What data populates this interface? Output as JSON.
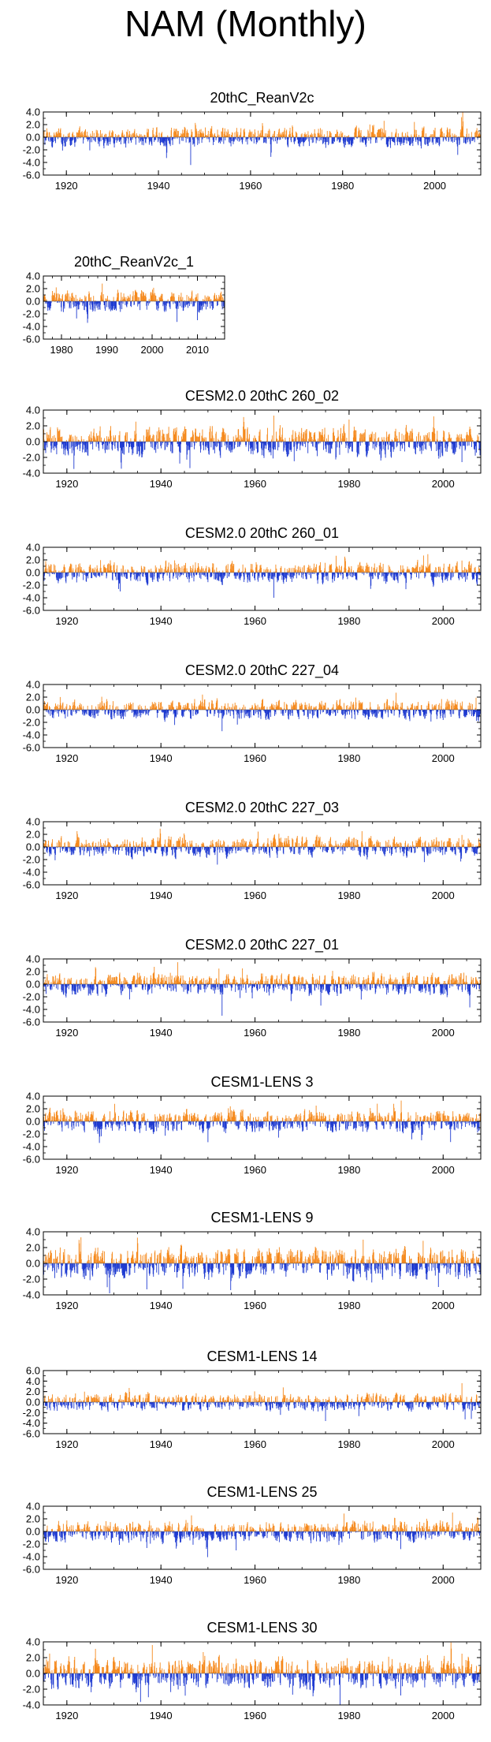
{
  "page_title": "NAM (Monthly)",
  "colors": {
    "positive": "#f5891c",
    "negative": "#1f3bd1",
    "axis": "#000000"
  },
  "chart_data": [
    {
      "type": "bar",
      "title": "20thC_ReanV2c",
      "xlim": [
        1915,
        2010
      ],
      "ylim": [
        -6,
        4
      ],
      "xticks": [
        1920,
        1940,
        1960,
        1980,
        2000
      ],
      "yticks": [
        4,
        2,
        0,
        -2,
        -4,
        -6
      ],
      "ytick_labels": [
        "4.0",
        "2.0",
        "0.0",
        "-2.0",
        "-4.0",
        "-6.0"
      ],
      "x_range": [
        1915,
        2010
      ],
      "amplitude": [
        1.2,
        2.0
      ],
      "peaks": [
        [
          1947,
          -4.4
        ],
        [
          1989,
          2.6
        ],
        [
          2005,
          -2.8
        ]
      ]
    },
    {
      "type": "bar",
      "title": "20thC_ReanV2c_1",
      "xlim": [
        1976,
        2016
      ],
      "ylim": [
        -6,
        4
      ],
      "xticks": [
        1980,
        1990,
        2000,
        2010
      ],
      "yticks": [
        4,
        2,
        0,
        -2,
        -4,
        -6
      ],
      "ytick_labels": [
        "4.0",
        "2.0",
        "0.0",
        "-2.0",
        "-4.0",
        "-6.0"
      ],
      "x_range": [
        1976,
        2016
      ],
      "amplitude": [
        1.3,
        1.8
      ],
      "peaks": [
        [
          1989,
          2.8
        ],
        [
          2010,
          -3.0
        ]
      ]
    },
    {
      "type": "bar",
      "title": "CESM2.0 20thC 260_02",
      "xlim": [
        1915,
        2008
      ],
      "ylim": [
        -4,
        4
      ],
      "xticks": [
        1920,
        1940,
        1960,
        1980,
        2000
      ],
      "yticks": [
        4,
        2,
        0,
        -2,
        -4
      ],
      "ytick_labels": [
        "4.0",
        "2.0",
        "0.0",
        "-2.0",
        "-4.0"
      ],
      "x_range": [
        1915,
        2008
      ],
      "amplitude": [
        1.4,
        1.9
      ],
      "peaks": [
        [
          1964,
          3.3
        ],
        [
          1980,
          2.8
        ],
        [
          2004,
          -2.6
        ]
      ]
    },
    {
      "type": "bar",
      "title": "CESM2.0 20thC 260_01",
      "xlim": [
        1915,
        2008
      ],
      "ylim": [
        -6,
        4
      ],
      "xticks": [
        1920,
        1940,
        1960,
        1980,
        2000
      ],
      "yticks": [
        4,
        2,
        0,
        -2,
        -4,
        -6
      ],
      "ytick_labels": [
        "4.0",
        "2.0",
        "0.0",
        "-2.0",
        "-4.0",
        "-6.0"
      ],
      "x_range": [
        1915,
        2008
      ],
      "amplitude": [
        1.3,
        1.8
      ],
      "peaks": [
        [
          1964,
          -4.0
        ],
        [
          1941,
          1.8
        ],
        [
          2004,
          1.9
        ]
      ]
    },
    {
      "type": "bar",
      "title": "CESM2.0 20thC 227_04",
      "xlim": [
        1915,
        2008
      ],
      "ylim": [
        -6,
        4
      ],
      "xticks": [
        1920,
        1940,
        1960,
        1980,
        2000
      ],
      "yticks": [
        4,
        2,
        0,
        -2,
        -4,
        -6
      ],
      "ytick_labels": [
        "4.0",
        "2.0",
        "0.0",
        "-2.0",
        "-4.0",
        "-6.0"
      ],
      "x_range": [
        1915,
        2008
      ],
      "amplitude": [
        1.2,
        1.8
      ],
      "peaks": [
        [
          1953,
          -3.4
        ],
        [
          1990,
          2.7
        ],
        [
          2007,
          1.9
        ]
      ]
    },
    {
      "type": "bar",
      "title": "CESM2.0 20thC 227_03",
      "xlim": [
        1915,
        2008
      ],
      "ylim": [
        -6,
        4
      ],
      "xticks": [
        1920,
        1940,
        1960,
        1980,
        2000
      ],
      "yticks": [
        4,
        2,
        0,
        -2,
        -4,
        -6
      ],
      "ytick_labels": [
        "4.0",
        "2.0",
        "0.0",
        "-2.0",
        "-4.0",
        "-6.0"
      ],
      "x_range": [
        1915,
        2008
      ],
      "amplitude": [
        1.2,
        1.7
      ],
      "peaks": [
        [
          1952,
          -2.8
        ],
        [
          1996,
          -2.4
        ],
        [
          2004,
          1.9
        ]
      ]
    },
    {
      "type": "bar",
      "title": "CESM2.0 20thC 227_01",
      "xlim": [
        1915,
        2008
      ],
      "ylim": [
        -6,
        4
      ],
      "xticks": [
        1920,
        1940,
        1960,
        1980,
        2000
      ],
      "yticks": [
        4,
        2,
        0,
        -2,
        -4,
        -6
      ],
      "ytick_labels": [
        "4.0",
        "2.0",
        "0.0",
        "-2.0",
        "-4.0",
        "-6.0"
      ],
      "x_range": [
        1915,
        2008
      ],
      "amplitude": [
        1.3,
        1.9
      ],
      "peaks": [
        [
          1953,
          -5.0
        ],
        [
          1974,
          -3.4
        ],
        [
          1942,
          1.8
        ]
      ]
    },
    {
      "type": "bar",
      "title": "CESM1-LENS 3",
      "xlim": [
        1915,
        2008
      ],
      "ylim": [
        -6,
        4
      ],
      "xticks": [
        1920,
        1940,
        1960,
        1980,
        2000
      ],
      "yticks": [
        4,
        2,
        0,
        -2,
        -4,
        -6
      ],
      "ytick_labels": [
        "4.0",
        "2.0",
        "0.0",
        "-2.0",
        "-4.0",
        "-6.0"
      ],
      "x_range": [
        1915,
        2008
      ],
      "amplitude": [
        1.3,
        1.9
      ],
      "peaks": [
        [
          1950,
          -3.3
        ],
        [
          1986,
          2.8
        ],
        [
          1973,
          2.5
        ]
      ]
    },
    {
      "type": "bar",
      "title": "CESM1-LENS 9",
      "xlim": [
        1915,
        2008
      ],
      "ylim": [
        -4,
        4
      ],
      "xticks": [
        1920,
        1940,
        1960,
        1980,
        2000
      ],
      "yticks": [
        4,
        2,
        0,
        -2,
        -4
      ],
      "ytick_labels": [
        "4.0",
        "2.0",
        "0.0",
        "-2.0",
        "-4.0"
      ],
      "x_range": [
        1915,
        2008
      ],
      "amplitude": [
        1.5,
        2.0
      ],
      "peaks": [
        [
          1923,
          3.3
        ],
        [
          1937,
          -3.3
        ],
        [
          1983,
          3.0
        ],
        [
          1999,
          -3.0
        ]
      ]
    },
    {
      "type": "bar",
      "title": "CESM1-LENS 14",
      "xlim": [
        1915,
        2008
      ],
      "ylim": [
        -6,
        6
      ],
      "xticks": [
        1920,
        1940,
        1960,
        1980,
        2000
      ],
      "yticks": [
        6,
        4,
        2,
        0,
        -2,
        -4,
        -6
      ],
      "ytick_labels": [
        "6.0",
        "4.0",
        "2.0",
        "0.0",
        "-2.0",
        "-4.0",
        "-6.0"
      ],
      "x_range": [
        1915,
        2008
      ],
      "amplitude": [
        1.3,
        1.8
      ],
      "peaks": [
        [
          1966,
          2.8
        ],
        [
          1975,
          -3.6
        ],
        [
          2004,
          3.6
        ],
        [
          2006,
          -3.2
        ]
      ]
    },
    {
      "type": "bar",
      "title": "CESM1-LENS 25",
      "xlim": [
        1915,
        2008
      ],
      "ylim": [
        -6,
        4
      ],
      "xticks": [
        1920,
        1940,
        1960,
        1980,
        2000
      ],
      "yticks": [
        4,
        2,
        0,
        -2,
        -4,
        -6
      ],
      "ytick_labels": [
        "4.0",
        "2.0",
        "0.0",
        "-2.0",
        "-4.0",
        "-6.0"
      ],
      "x_range": [
        1915,
        2008
      ],
      "amplitude": [
        1.3,
        1.8
      ],
      "peaks": [
        [
          1956,
          -3.0
        ],
        [
          2002,
          3.0
        ],
        [
          1991,
          -2.8
        ]
      ]
    },
    {
      "type": "bar",
      "title": "CESM1-LENS 30",
      "xlim": [
        1915,
        2008
      ],
      "ylim": [
        -4,
        4
      ],
      "xticks": [
        1920,
        1940,
        1960,
        1980,
        2000
      ],
      "yticks": [
        4,
        2,
        0,
        -2,
        -4
      ],
      "ytick_labels": [
        "4.0",
        "2.0",
        "0.0",
        "-2.0",
        "-4.0"
      ],
      "x_range": [
        1915,
        2008
      ],
      "amplitude": [
        1.5,
        2.0
      ],
      "peaks": [
        [
          1949,
          2.7
        ],
        [
          1968,
          -2.7
        ],
        [
          1991,
          -2.8
        ],
        [
          2004,
          2.5
        ]
      ]
    }
  ]
}
